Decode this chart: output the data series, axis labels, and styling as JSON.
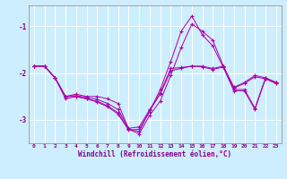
{
  "title": "",
  "xlabel": "Windchill (Refroidissement éolien,°C)",
  "background_color": "#cceeff",
  "grid_color": "#ffffff",
  "line_color": "#aa00aa",
  "x_values": [
    0,
    1,
    2,
    3,
    4,
    5,
    6,
    7,
    8,
    9,
    10,
    11,
    12,
    13,
    14,
    15,
    16,
    17,
    18,
    19,
    20,
    21,
    22,
    23
  ],
  "series1": [
    -1.85,
    -1.85,
    -2.1,
    -2.5,
    -2.45,
    -2.5,
    -2.5,
    -2.55,
    -2.65,
    -3.2,
    -3.25,
    -2.8,
    -2.45,
    -1.95,
    -1.9,
    -1.85,
    -1.85,
    -1.9,
    -1.85,
    -2.3,
    -2.2,
    -2.05,
    -2.1,
    -2.2
  ],
  "series2": [
    -1.85,
    -1.85,
    -2.1,
    -2.5,
    -2.5,
    -2.55,
    -2.6,
    -2.7,
    -2.85,
    -3.2,
    -3.3,
    -2.9,
    -2.6,
    -2.05,
    -1.45,
    -0.95,
    -1.1,
    -1.3,
    -1.85,
    -2.35,
    -2.35,
    -2.75,
    -2.1,
    -2.2
  ],
  "series3": [
    -1.85,
    -1.85,
    -2.1,
    -2.55,
    -2.5,
    -2.55,
    -2.62,
    -2.72,
    -2.88,
    -3.22,
    -3.2,
    -2.82,
    -2.35,
    -1.75,
    -1.1,
    -0.78,
    -1.18,
    -1.42,
    -1.88,
    -2.38,
    -2.38,
    -2.78,
    -2.12,
    -2.22
  ],
  "series4": [
    -1.85,
    -1.85,
    -2.1,
    -2.5,
    -2.48,
    -2.52,
    -2.56,
    -2.65,
    -2.78,
    -3.18,
    -3.15,
    -2.78,
    -2.42,
    -1.9,
    -1.88,
    -1.85,
    -1.87,
    -1.92,
    -1.87,
    -2.32,
    -2.22,
    -2.08,
    -2.12,
    -2.22
  ],
  "ylim": [
    -3.5,
    -0.55
  ],
  "yticks": [
    -3.0,
    -2.0,
    -1.0
  ],
  "xlim": [
    -0.5,
    23.5
  ]
}
